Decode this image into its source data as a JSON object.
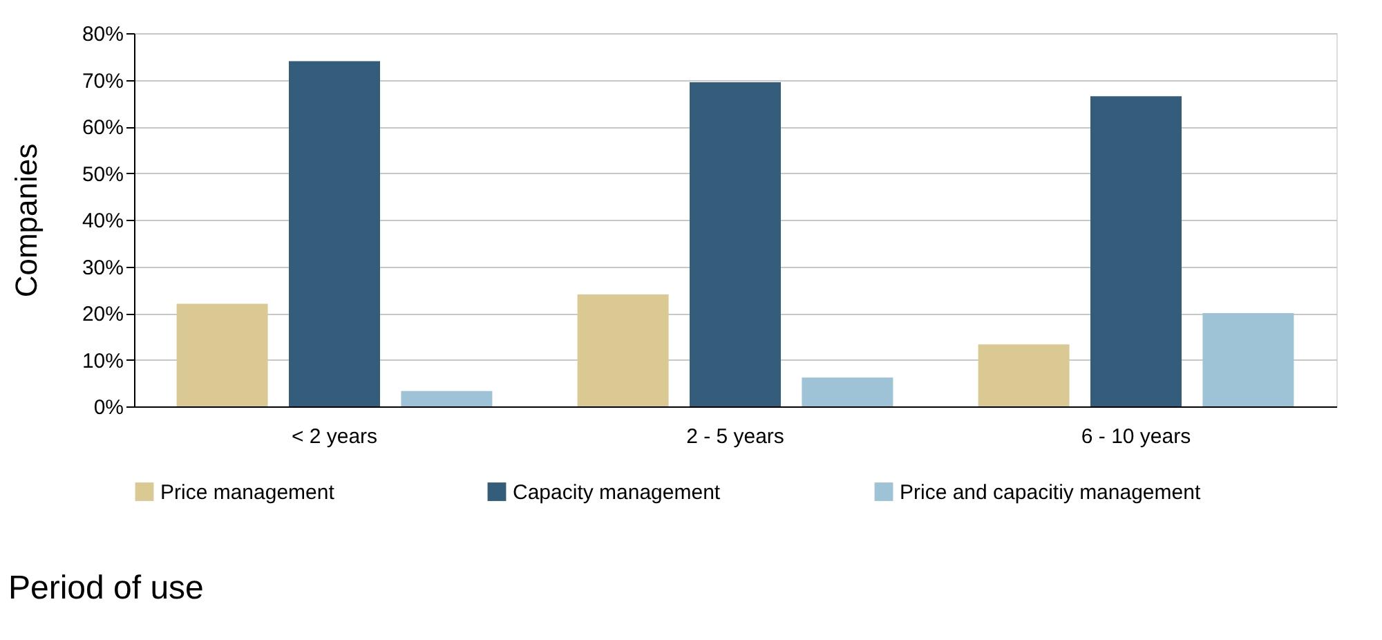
{
  "chart_data": {
    "type": "bar",
    "xlabel": "Period of use",
    "ylabel": "Companies",
    "categories": [
      "< 2 years",
      "2 - 5 years",
      "6 - 10 years"
    ],
    "series": [
      {
        "name": "Price management",
        "color": "#dbc994",
        "values": [
          22,
          24,
          13.3
        ]
      },
      {
        "name": "Capacity management",
        "color": "#335d7b",
        "values": [
          74,
          69.5,
          66.5
        ]
      },
      {
        "name": "Price and capacitiy management",
        "color": "#9ec3d6",
        "values": [
          3.3,
          6.2,
          20
        ]
      }
    ],
    "ylim": [
      0,
      80
    ],
    "yticks": [
      {
        "value": 0,
        "label": "0%"
      },
      {
        "value": 10,
        "label": "10%"
      },
      {
        "value": 20,
        "label": "20%"
      },
      {
        "value": 30,
        "label": "30%"
      },
      {
        "value": 40,
        "label": "40%"
      },
      {
        "value": 50,
        "label": "50%"
      },
      {
        "value": 60,
        "label": "60%"
      },
      {
        "value": 70,
        "label": "70%"
      },
      {
        "value": 80,
        "label": "80%"
      }
    ],
    "grid": "y",
    "legend": "bottom"
  }
}
